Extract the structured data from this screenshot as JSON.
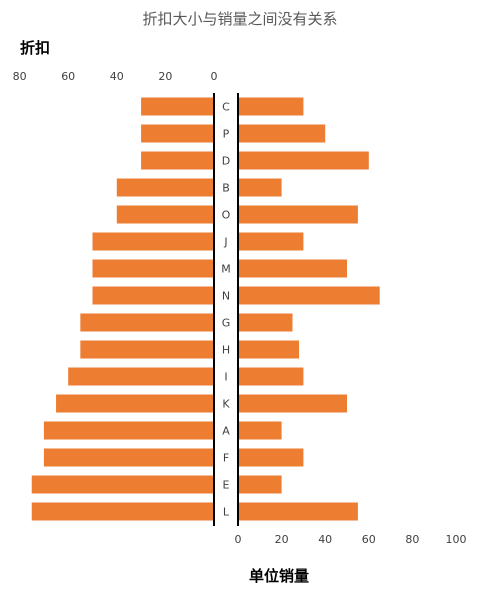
{
  "chart_data": {
    "type": "bar",
    "title": "折扣大小与销量之间没有关系",
    "left_axis_label": "折扣",
    "right_axis_label": "单位销量",
    "categories": [
      "C",
      "P",
      "D",
      "B",
      "O",
      "J",
      "M",
      "N",
      "G",
      "H",
      "I",
      "K",
      "A",
      "F",
      "E",
      "L"
    ],
    "series": [
      {
        "values": [
          30,
          30,
          30,
          40,
          40,
          50,
          50,
          50,
          55,
          55,
          60,
          65,
          70,
          70,
          75,
          75
        ]
      },
      {
        "values": [
          30,
          40,
          60,
          20,
          55,
          30,
          50,
          65,
          25,
          28,
          30,
          50,
          20,
          30,
          20,
          55
        ]
      }
    ],
    "left_ticks": [
      "80",
      "60",
      "40",
      "20",
      "0"
    ],
    "right_ticks": [
      "0",
      "20",
      "40",
      "60",
      "80",
      "100"
    ],
    "left_xlim": [
      0,
      80
    ],
    "right_xlim": [
      0,
      100
    ],
    "bar_color": "#ED7D31",
    "grid": false
  }
}
